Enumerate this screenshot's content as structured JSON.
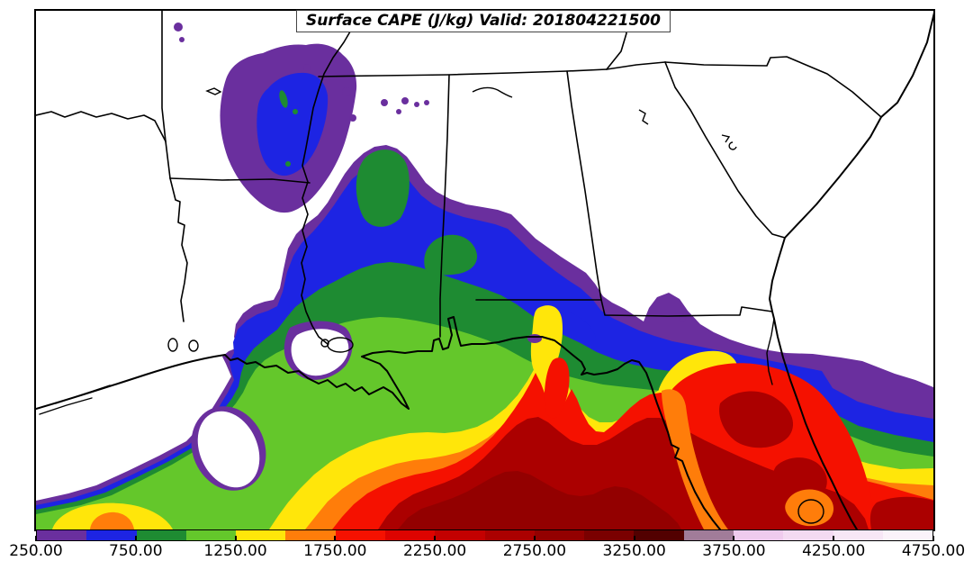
{
  "figure": {
    "title": "Surface CAPE (J/kg) Valid: 201804221500"
  },
  "colorbar": {
    "min": 250,
    "max": 4750,
    "interval": 250,
    "tick_interval": 500,
    "tick_labels": [
      "250.00",
      "750.00",
      "1250.00",
      "1750.00",
      "2250.00",
      "2750.00",
      "3250.00",
      "3750.00",
      "4250.00",
      "4750.00"
    ]
  },
  "chart_data": {
    "type": "heatmap",
    "title": "Surface CAPE (J/kg) Valid: 201804221500",
    "variable": "Surface CAPE",
    "units": "J/kg",
    "valid_time": "201804221500",
    "region": "Southeastern United States and Gulf of Mexico (Texas to the Carolinas, Gulf and Florida)",
    "legend_position": "bottom",
    "levels": [
      250,
      500,
      750,
      1000,
      1250,
      1500,
      1750,
      2000,
      2250,
      2500,
      2750,
      3000,
      3250,
      3500,
      3750,
      4000,
      4250,
      4500,
      4750
    ],
    "intervals": [
      {
        "from": 250,
        "to": 500,
        "color": "#6A2F9E"
      },
      {
        "from": 500,
        "to": 750,
        "color": "#1D24E3"
      },
      {
        "from": 750,
        "to": 1000,
        "color": "#1E8B32"
      },
      {
        "from": 1000,
        "to": 1250,
        "color": "#64C72B"
      },
      {
        "from": 1250,
        "to": 1500,
        "color": "#FFE60A"
      },
      {
        "from": 1500,
        "to": 1750,
        "color": "#FF7D0A"
      },
      {
        "from": 1750,
        "to": 2000,
        "color": "#F51100"
      },
      {
        "from": 2000,
        "to": 2250,
        "color": "#DD0300"
      },
      {
        "from": 2250,
        "to": 2500,
        "color": "#C30000"
      },
      {
        "from": 2500,
        "to": 2750,
        "color": "#AB0000"
      },
      {
        "from": 2750,
        "to": 3000,
        "color": "#930000"
      },
      {
        "from": 3000,
        "to": 3250,
        "color": "#7A0000"
      },
      {
        "from": 3250,
        "to": 3500,
        "color": "#520000"
      },
      {
        "from": 3500,
        "to": 3750,
        "color": "#A17C99"
      },
      {
        "from": 3750,
        "to": 4000,
        "color": "#EFCBEE"
      },
      {
        "from": 4000,
        "to": 4250,
        "color": "#F3DAF2"
      },
      {
        "from": 4250,
        "to": 4500,
        "color": "#F7E7F6"
      },
      {
        "from": 4500,
        "to": 4750,
        "color": "#FBF3FA"
      }
    ],
    "features": [
      "Maximum CAPE 2750-3000 J/kg over the south-central Gulf of Mexico along the bottom edge",
      "Secondary maximum 2250-2750 J/kg over the central Florida peninsula and bottom-right Atlantic corner",
      "Two red (>1750 J/kg) plumes extend north toward the Florida panhandle near Panama City",
      "Isolated 250-750 J/kg pocket over eastern Arkansas with small embedded 750-1250 patches",
      "CAPE below 250 J/kg (white) over Texas, Tennessee, northern Alabama, Georgia and the Carolinas",
      "White low-CAPE hole offshore of the central Texas coast ringed by 250-500 J/kg",
      "White pocket over southeastern Louisiana near Lake Pontchartrain",
      "Purple 250-500 J/kg arc offshore of the Georgia / northeast Florida Atlantic coast"
    ]
  }
}
